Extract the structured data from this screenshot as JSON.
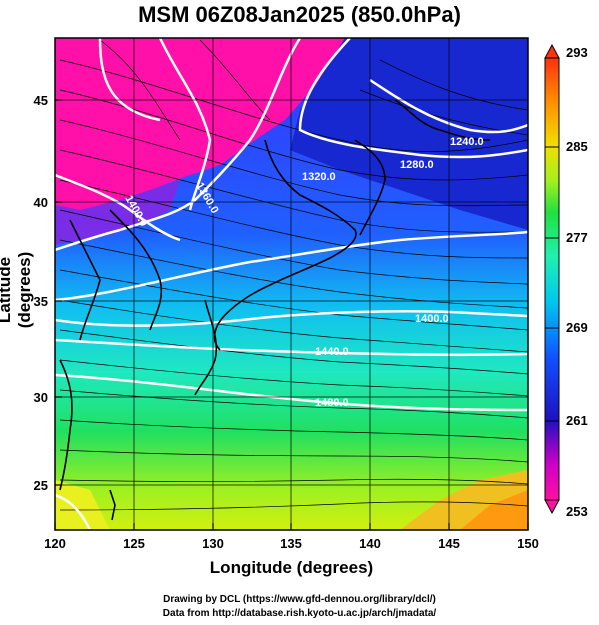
{
  "title": "MSM 06Z08Jan2025 (850.0hPa)",
  "axes": {
    "xlabel": "Longitude (degrees)",
    "ylabel": "Latitude  (degrees)",
    "xticks": [
      "120",
      "125",
      "130",
      "135",
      "140",
      "145",
      "150"
    ],
    "yticks": [
      "45",
      "40",
      "35",
      "30",
      "25"
    ]
  },
  "colorbar": {
    "labels": [
      "293",
      "285",
      "277",
      "269",
      "261",
      "253"
    ],
    "colors": [
      "#ff1090",
      "#b000d8",
      "#2010c0",
      "#1060ff",
      "#00c0f0",
      "#20f0b0",
      "#20e040",
      "#a0f020",
      "#f0e000",
      "#ff9000",
      "#ff3000"
    ]
  },
  "contour_labels": [
    "1240.0",
    "1280.0",
    "1320.0",
    "1360.0",
    "1400.0",
    "1400.0",
    "1440.0",
    "1480.0"
  ],
  "credits": {
    "line1": "Drawing by DCL (https://www.gfd-dennou.org/library/dcl/)",
    "line2": "Data from http://database.rish.kyoto-u.ac.jp/arch/jmadata/"
  }
}
